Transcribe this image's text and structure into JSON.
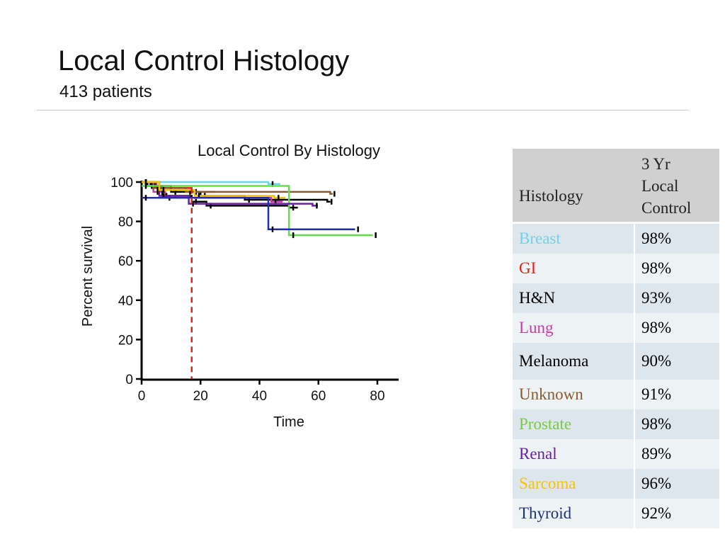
{
  "slide": {
    "title": "Local Control Histology",
    "subtitle": "413 patients"
  },
  "colors": {
    "breast": "#6fd3e8",
    "gi": "#e0201b",
    "hn": "#000000",
    "lung": "#c83ca8",
    "melanoma": "#000000",
    "unknown": "#8b5a2b",
    "prostate": "#5fe04a",
    "renal": "#6a1fa0",
    "sarcoma": "#f2c500",
    "thyroid": "#1f2fa8",
    "header_bg": "#d0d0d0",
    "row_odd": "#dde6ec",
    "row_even": "#edf2f5"
  },
  "chart_data": {
    "type": "line",
    "title": "Local Control By Histology",
    "xlabel": "Time",
    "ylabel": "Percent survival",
    "xlim": [
      0,
      80
    ],
    "ylim": [
      0,
      100
    ],
    "xticks": [
      0,
      20,
      40,
      60,
      80
    ],
    "yticks": [
      0,
      20,
      40,
      60,
      80,
      100
    ],
    "reference_line": {
      "x": 17,
      "color": "#e0201b",
      "style": "dashed"
    },
    "series": [
      {
        "name": "Breast",
        "color": "#6fd3e8",
        "x": [
          0,
          43
        ],
        "y": [
          100,
          99
        ]
      },
      {
        "name": "GI",
        "color": "#e0201b",
        "x": [
          0,
          5,
          17
        ],
        "y": [
          100,
          97,
          95
        ]
      },
      {
        "name": "H&N",
        "color": "#000000",
        "x": [
          0,
          2,
          10,
          20,
          35,
          63
        ],
        "y": [
          100,
          98,
          95,
          93,
          91,
          90
        ]
      },
      {
        "name": "Lung",
        "color": "#c83ca8",
        "x": [
          0,
          4,
          8,
          44
        ],
        "y": [
          100,
          95,
          92,
          90
        ]
      },
      {
        "name": "Melanoma",
        "color": "#000000",
        "x": [
          0,
          3,
          7,
          17,
          22,
          50
        ],
        "y": [
          100,
          98,
          93,
          90,
          88,
          87
        ]
      },
      {
        "name": "Unknown",
        "color": "#8b5a2b",
        "x": [
          0,
          4,
          15,
          64
        ],
        "y": [
          100,
          97,
          95,
          94
        ]
      },
      {
        "name": "Prostate",
        "color": "#5fe04a",
        "x": [
          0,
          50,
          78
        ],
        "y": [
          98,
          73,
          73
        ]
      },
      {
        "name": "Renal",
        "color": "#6a1fa0",
        "x": [
          0,
          6,
          16,
          58
        ],
        "y": [
          100,
          93,
          89,
          88
        ]
      },
      {
        "name": "Sarcoma",
        "color": "#f2c500",
        "x": [
          0,
          6,
          18,
          45
        ],
        "y": [
          100,
          96,
          93,
          92
        ]
      },
      {
        "name": "Thyroid",
        "color": "#1f2fa8",
        "x": [
          0,
          43,
          72
        ],
        "y": [
          92,
          76,
          76
        ]
      }
    ]
  },
  "table": {
    "header": {
      "col1": "Histology",
      "col2_line1": "3 Yr",
      "col2_line2": "Local",
      "col2_line3": "Control"
    },
    "rows": [
      {
        "histology": "Breast",
        "value": "98%",
        "color": "#6fd3e8"
      },
      {
        "histology": "GI",
        "value": "98%",
        "color": "#e0201b"
      },
      {
        "histology": "H&N",
        "value": "93%",
        "color": "#000000"
      },
      {
        "histology": "Lung",
        "value": "98%",
        "color": "#c83ca8"
      },
      {
        "histology": "Melanoma",
        "value": "90%",
        "color": "#000000"
      },
      {
        "histology": "Unknown",
        "value": "91%",
        "color": "#8b5a2b"
      },
      {
        "histology": "Prostate",
        "value": "98%",
        "color": "#7ac943"
      },
      {
        "histology": "Renal",
        "value": "89%",
        "color": "#6a1fa0"
      },
      {
        "histology": "Sarcoma",
        "value": "96%",
        "color": "#f2c500"
      },
      {
        "histology": "Thyroid",
        "value": "92%",
        "color": "#1f2f7a"
      }
    ]
  }
}
